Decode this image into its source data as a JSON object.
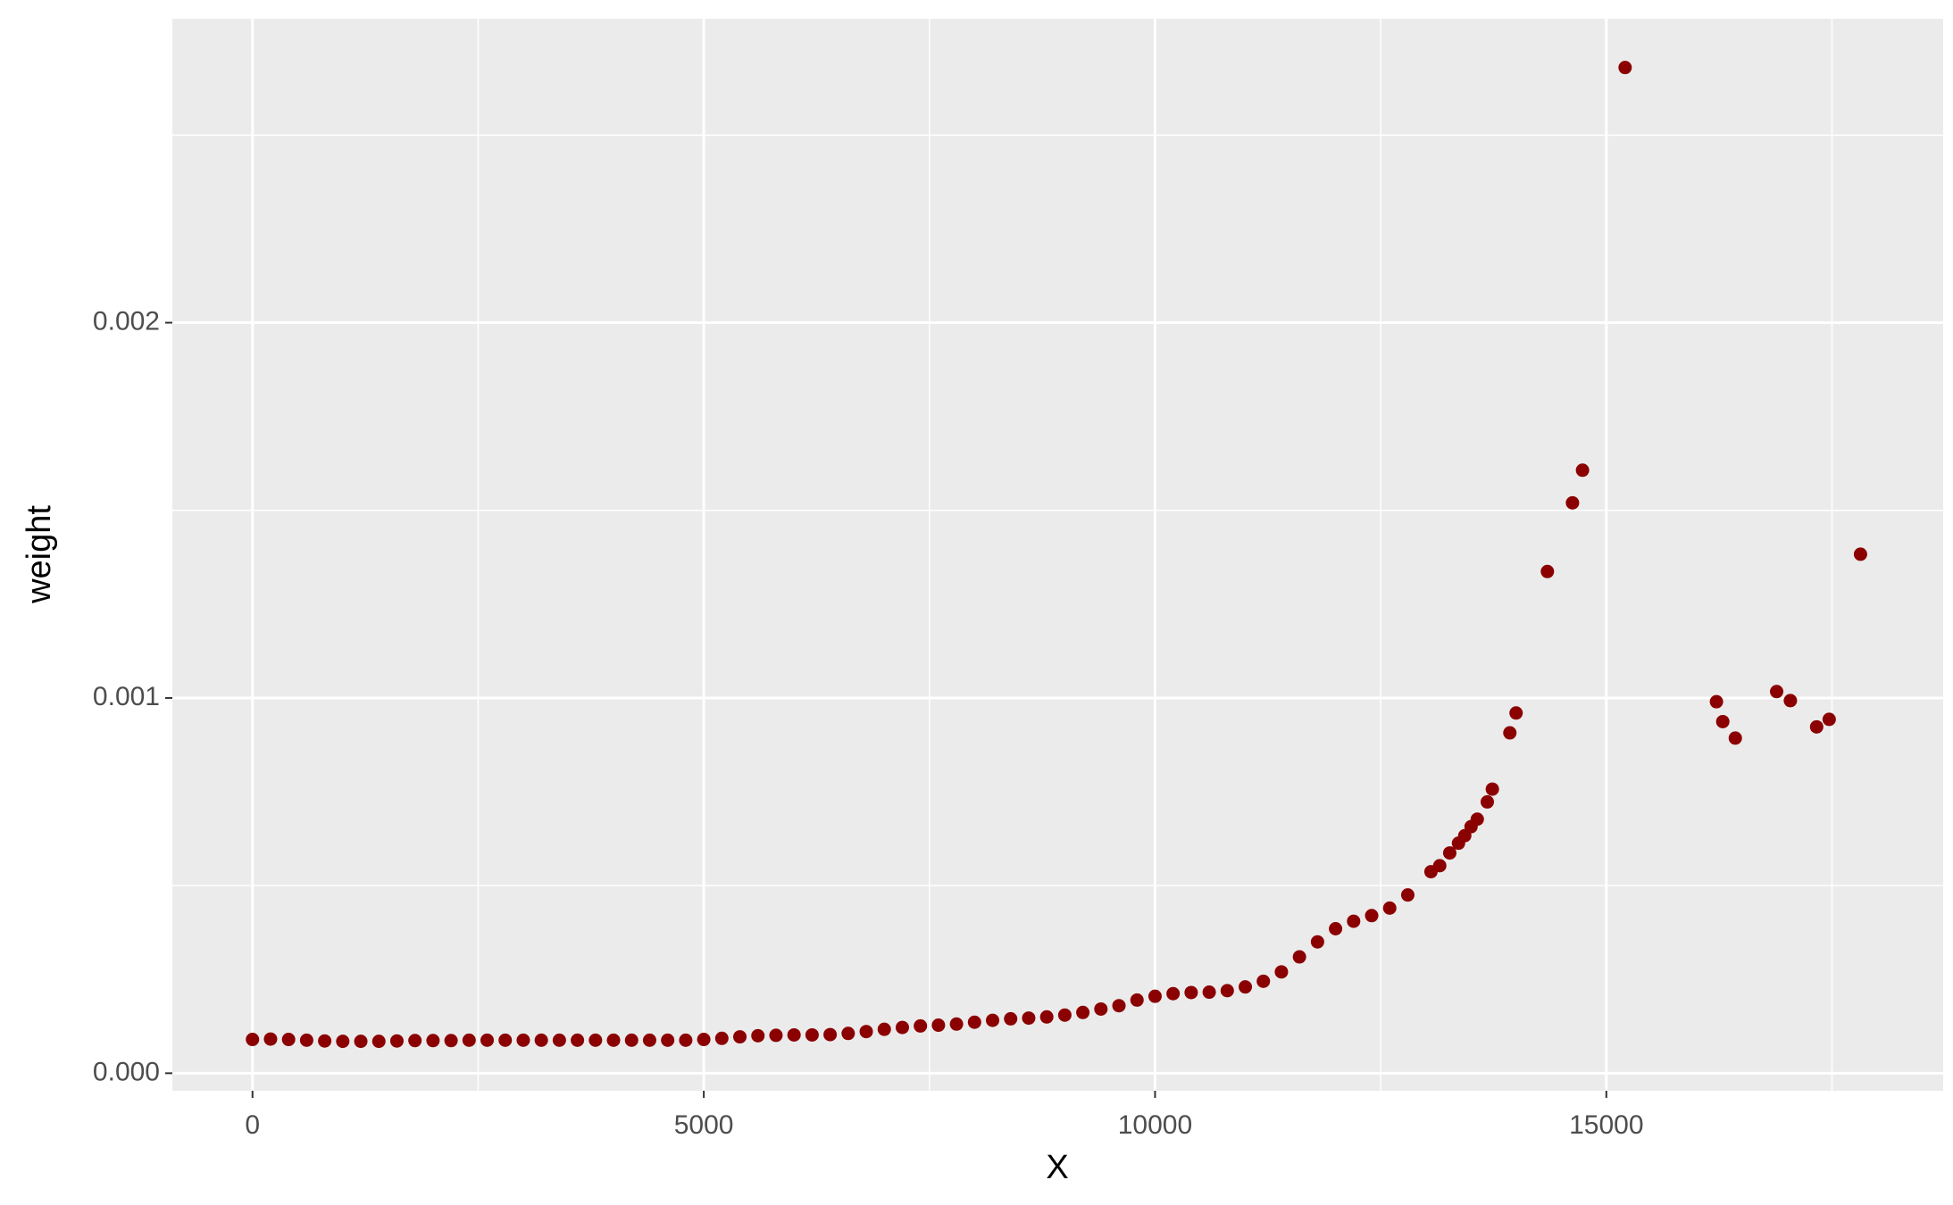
{
  "chart_data": {
    "type": "scatter",
    "x_label": "X",
    "y_label": "weight",
    "color": "#8b0000",
    "grid": true,
    "xlim": [
      -888,
      18732
    ],
    "ylim": [
      -4.67e-05,
      0.00281
    ],
    "xticks": [
      0,
      5000,
      10000,
      15000
    ],
    "xminor": [
      2500,
      7500,
      12500,
      17500
    ],
    "yticks": [
      {
        "value": 0,
        "label": "0.000"
      },
      {
        "value": 0.001,
        "label": "0.001"
      },
      {
        "value": 0.002,
        "label": "0.002"
      }
    ],
    "yminor": [
      0.0005,
      0.0015,
      0.0025
    ],
    "x": [
      0,
      200,
      400,
      600,
      800,
      1000,
      1200,
      1400,
      1600,
      1800,
      2000,
      2200,
      2400,
      2600,
      2800,
      3000,
      3200,
      3400,
      3600,
      3800,
      4000,
      4200,
      4400,
      4600,
      4800,
      5000,
      5200,
      5400,
      5600,
      5800,
      6000,
      6200,
      6400,
      6600,
      6800,
      7000,
      7200,
      7400,
      7600,
      7800,
      8000,
      8200,
      8400,
      8600,
      8800,
      9000,
      9200,
      9400,
      9600,
      9800,
      10000,
      10200,
      10400,
      10600,
      10800,
      11000,
      11200,
      11400,
      11600,
      11800,
      12000,
      12200,
      12400,
      12600,
      12800,
      13057,
      13154,
      13265,
      13362,
      13431,
      13501,
      13570,
      13681,
      13737,
      13931,
      14000,
      14347,
      14625,
      14736,
      15208,
      16220,
      16290,
      16429,
      16887,
      17039,
      17330,
      17469,
      17816
    ],
    "values": [
      9e-05,
      9.1e-05,
      9e-05,
      8.8e-05,
      8.6e-05,
      8.5e-05,
      8.5e-05,
      8.5e-05,
      8.6e-05,
      8.7e-05,
      8.7e-05,
      8.7e-05,
      8.8e-05,
      8.8e-05,
      8.8e-05,
      8.8e-05,
      8.8e-05,
      8.8e-05,
      8.8e-05,
      8.8e-05,
      8.8e-05,
      8.8e-05,
      8.8e-05,
      8.8e-05,
      8.8e-05,
      9e-05,
      9.3e-05,
      9.7e-05,
      0.0001,
      0.000101,
      0.000102,
      0.000102,
      0.000103,
      0.000106,
      0.000111,
      0.000117,
      0.000122,
      0.000126,
      0.000128,
      0.000131,
      0.000136,
      0.000141,
      0.000145,
      0.000147,
      0.00015,
      0.000155,
      0.000162,
      0.000171,
      0.00018,
      0.000195,
      0.000205,
      0.000212,
      0.000215,
      0.000216,
      0.00022,
      0.00023,
      0.000245,
      0.00027,
      0.00031,
      0.00035,
      0.000385,
      0.000405,
      0.00042,
      0.00044,
      0.000475,
      0.000537,
      0.000553,
      0.000587,
      0.000613,
      0.000633,
      0.000657,
      0.000677,
      0.000723,
      0.000757,
      0.000907,
      0.00096,
      0.001337,
      0.00152,
      0.001607,
      0.00268,
      0.00099,
      0.000937,
      0.000893,
      0.001017,
      0.000993,
      0.000923,
      0.000943,
      0.001383
    ]
  }
}
